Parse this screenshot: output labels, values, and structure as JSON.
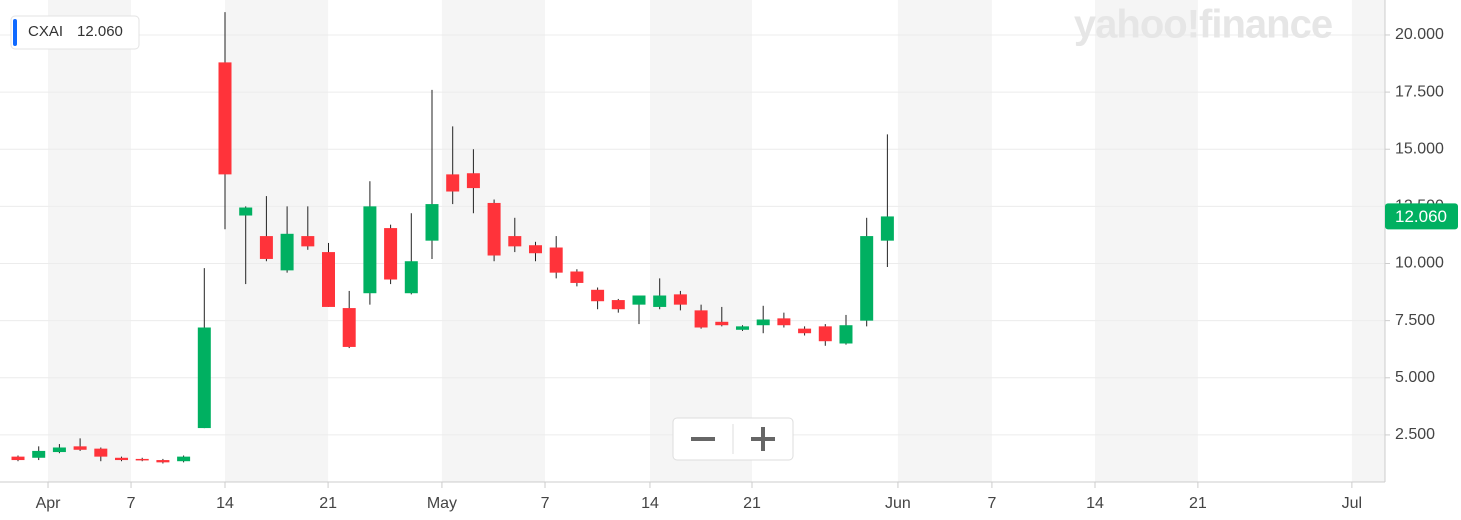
{
  "chart_data": {
    "type": "candlestick",
    "symbol": "CXAI",
    "last_price": {
      "value": 12.06,
      "label": "12.060"
    },
    "logo": "yahoo!finance",
    "up_color": "#00b061",
    "down_color": "#ff333a",
    "grid": true,
    "categories": [
      null,
      null,
      null,
      null,
      null,
      null,
      null,
      null,
      null,
      null,
      null,
      null,
      null,
      null,
      null,
      null,
      null,
      null,
      null,
      null,
      null,
      null,
      null,
      null,
      null,
      null,
      null,
      null,
      null,
      null,
      null,
      null,
      null,
      null,
      null,
      null,
      null,
      null,
      null,
      null,
      null,
      null,
      null
    ],
    "open": [
      1.55,
      1.5,
      1.75,
      2.0,
      1.9,
      1.5,
      1.45,
      1.4,
      1.35,
      2.8,
      18.8,
      12.1,
      11.2,
      9.7,
      11.2,
      10.5,
      8.05,
      8.7,
      11.55,
      8.7,
      11.0,
      13.9,
      13.95,
      12.65,
      11.2,
      10.8,
      10.7,
      9.65,
      8.85,
      8.4,
      8.2,
      8.1,
      8.65,
      7.95,
      7.45,
      7.1,
      7.3,
      7.6,
      7.15,
      7.25,
      6.5,
      7.5,
      11.0
    ],
    "high": [
      1.6,
      2.0,
      2.1,
      2.35,
      1.95,
      1.55,
      1.5,
      1.45,
      1.6,
      9.8,
      21.0,
      12.5,
      12.95,
      12.5,
      12.5,
      10.9,
      8.8,
      13.6,
      11.7,
      12.2,
      17.6,
      16.0,
      15.0,
      12.8,
      12.0,
      10.95,
      11.2,
      9.75,
      8.95,
      8.45,
      8.6,
      9.35,
      8.8,
      8.2,
      8.1,
      7.3,
      8.15,
      7.85,
      7.25,
      7.35,
      7.75,
      12.0,
      15.65
    ],
    "low": [
      1.35,
      1.4,
      1.7,
      1.8,
      1.35,
      1.35,
      1.35,
      1.25,
      1.3,
      2.8,
      11.5,
      9.1,
      10.1,
      9.6,
      10.6,
      8.1,
      6.3,
      8.2,
      9.1,
      8.65,
      10.2,
      12.6,
      12.2,
      10.1,
      10.5,
      10.1,
      9.35,
      9.0,
      8.0,
      7.85,
      7.35,
      8.0,
      7.95,
      7.15,
      7.25,
      7.05,
      6.95,
      7.2,
      6.85,
      6.4,
      6.45,
      7.25,
      9.85
    ],
    "close": [
      1.4,
      1.8,
      1.95,
      1.85,
      1.55,
      1.4,
      1.4,
      1.3,
      1.55,
      7.2,
      13.9,
      12.45,
      10.2,
      11.3,
      10.75,
      8.1,
      6.35,
      12.5,
      9.3,
      10.1,
      12.6,
      13.15,
      13.3,
      10.35,
      10.75,
      10.45,
      9.6,
      9.15,
      8.35,
      8.0,
      8.6,
      8.6,
      8.2,
      7.2,
      7.3,
      7.25,
      7.55,
      7.3,
      6.95,
      6.6,
      7.3,
      11.2,
      12.06
    ],
    "xlim": [
      -0.87,
      66.04
    ],
    "xticks": [
      {
        "value": 1.45,
        "label": "Apr"
      },
      {
        "value": 5.46,
        "label": "7"
      },
      {
        "value": 10.0,
        "label": "14"
      },
      {
        "value": 14.98,
        "label": "21"
      },
      {
        "value": 20.48,
        "label": "May"
      },
      {
        "value": 25.46,
        "label": "7"
      },
      {
        "value": 30.53,
        "label": "14"
      },
      {
        "value": 35.46,
        "label": "21"
      },
      {
        "value": 42.51,
        "label": "Jun"
      },
      {
        "value": 47.05,
        "label": "7"
      },
      {
        "value": 52.03,
        "label": "14"
      },
      {
        "value": 57.0,
        "label": "21"
      },
      {
        "value": 64.44,
        "label": "Jul"
      }
    ],
    "ylim": [
      0.44,
      21.53
    ],
    "yticks": [
      {
        "value": 2.5,
        "label": "2.500"
      },
      {
        "value": 5,
        "label": "5.000"
      },
      {
        "value": 7.5,
        "label": "7.500"
      },
      {
        "value": 10,
        "label": "10.000"
      },
      {
        "value": 12.5,
        "label": "12.500"
      },
      {
        "value": 15,
        "label": "15.000"
      },
      {
        "value": 17.5,
        "label": "17.500"
      },
      {
        "value": 20,
        "label": "20.000"
      }
    ]
  }
}
